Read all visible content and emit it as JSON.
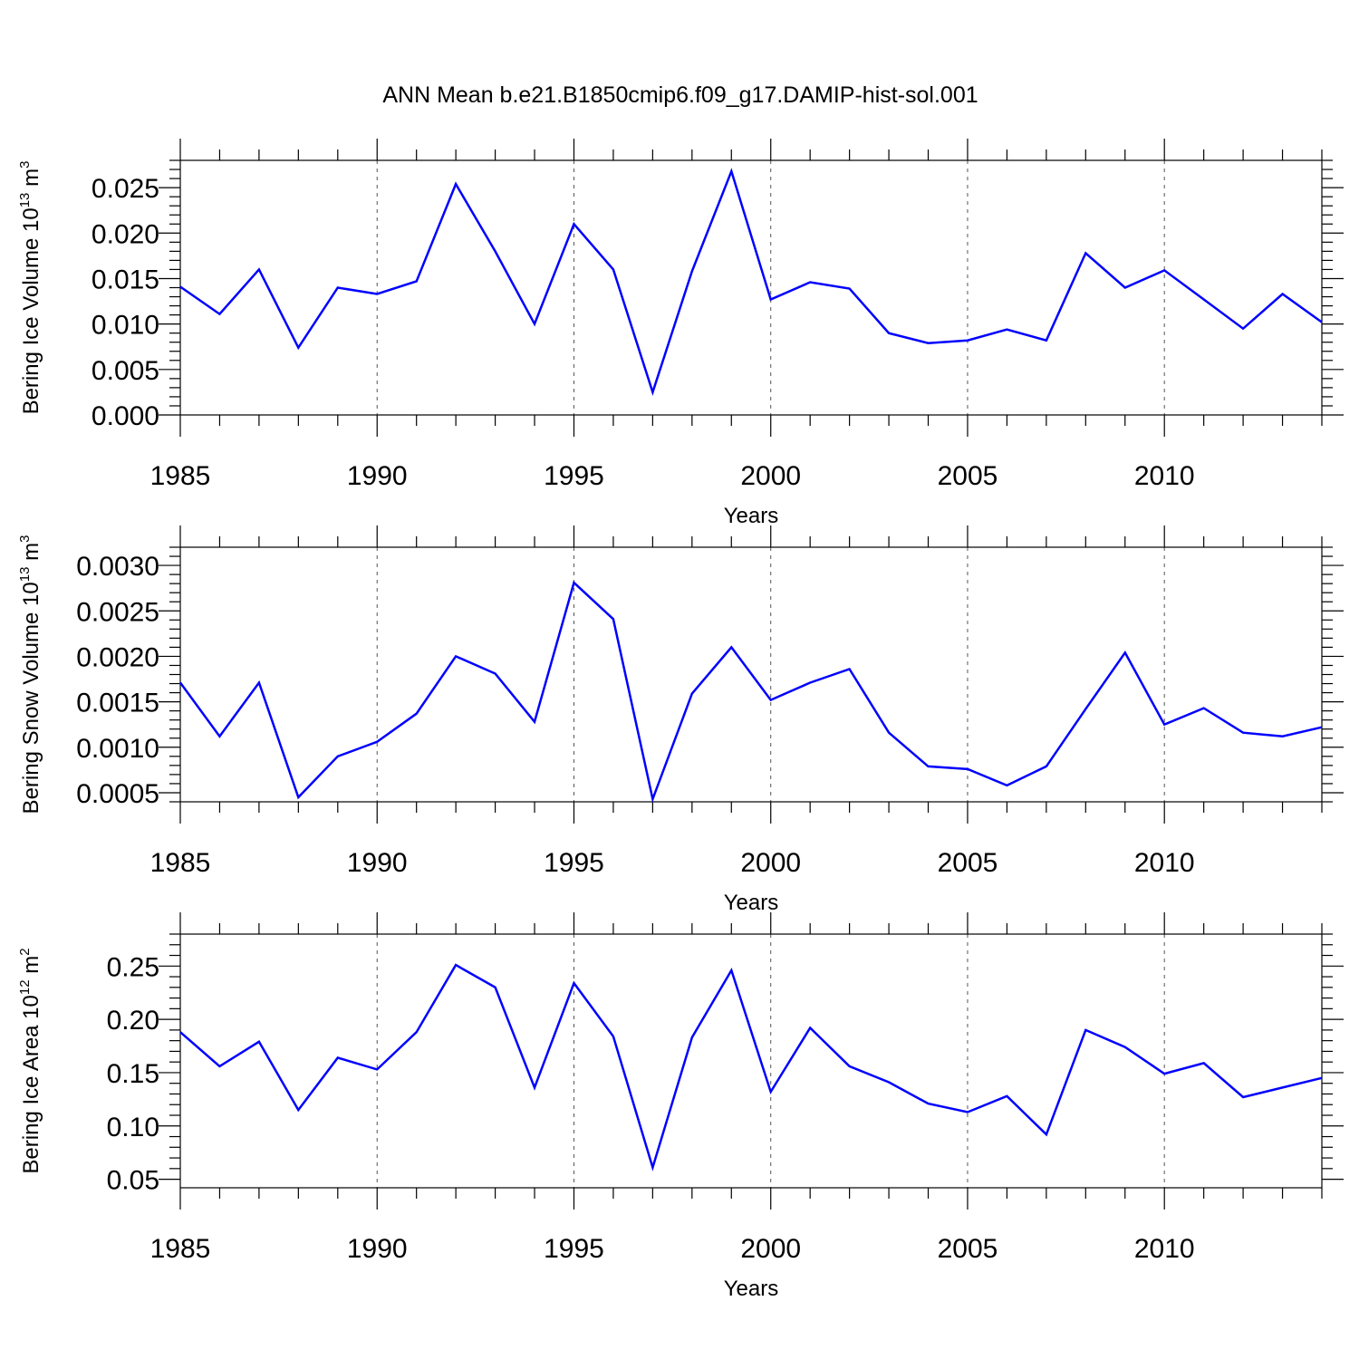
{
  "title": "ANN Mean b.e21.B1850cmip6.f09_g17.DAMIP-hist-sol.001",
  "colors": {
    "line": "#0000ff",
    "axis": "#000000",
    "grid": "#555555"
  },
  "chart_data": [
    {
      "type": "line",
      "xlabel": "Years",
      "ylabel": {
        "prefix": "Bering Ice Volume 10",
        "exp": "13",
        "unit": " m",
        "unit_exp": "3"
      },
      "xlim": [
        1985,
        2014
      ],
      "ylim": [
        0.0,
        0.028
      ],
      "xticks": [
        1985,
        1990,
        1995,
        2000,
        2005,
        2010
      ],
      "yticks": [
        "0.000",
        "0.005",
        "0.010",
        "0.015",
        "0.020",
        "0.025"
      ],
      "grid_x": "dashed vertical at major x ticks",
      "x": [
        1985,
        1986,
        1987,
        1988,
        1989,
        1990,
        1991,
        1992,
        1993,
        1994,
        1995,
        1996,
        1997,
        1998,
        1999,
        2000,
        2001,
        2002,
        2003,
        2004,
        2005,
        2006,
        2007,
        2008,
        2009,
        2010,
        2011,
        2012,
        2013,
        2014
      ],
      "series": [
        {
          "values": [
            0.0141,
            0.0111,
            0.016,
            0.0074,
            0.014,
            0.0133,
            0.0147,
            0.0254,
            0.018,
            0.01,
            0.021,
            0.016,
            0.0025,
            0.0158,
            0.0268,
            0.0127,
            0.0146,
            0.0139,
            0.009,
            0.0079,
            0.0082,
            0.0094,
            0.0082,
            0.0178,
            0.014,
            0.0159,
            0.0127,
            0.0095,
            0.0133,
            0.0102
          ]
        }
      ]
    },
    {
      "type": "line",
      "xlabel": "Years",
      "ylabel": {
        "prefix": "Bering Snow Volume 10",
        "exp": "13",
        "unit": " m",
        "unit_exp": "3"
      },
      "xlim": [
        1985,
        2014
      ],
      "ylim": [
        0.0004,
        0.0032
      ],
      "xticks": [
        1985,
        1990,
        1995,
        2000,
        2005,
        2010
      ],
      "yticks": [
        "0.0005",
        "0.0010",
        "0.0015",
        "0.0020",
        "0.0025",
        "0.0030"
      ],
      "grid_x": "dashed vertical at major x ticks",
      "x": [
        1985,
        1986,
        1987,
        1988,
        1989,
        1990,
        1991,
        1992,
        1993,
        1994,
        1995,
        1996,
        1997,
        1998,
        1999,
        2000,
        2001,
        2002,
        2003,
        2004,
        2005,
        2006,
        2007,
        2008,
        2009,
        2010,
        2011,
        2012,
        2013,
        2014
      ],
      "series": [
        {
          "values": [
            0.00171,
            0.00112,
            0.00171,
            0.00045,
            0.0009,
            0.00106,
            0.00137,
            0.002,
            0.00181,
            0.00128,
            0.00281,
            0.00241,
            0.00043,
            0.00159,
            0.0021,
            0.00152,
            0.00171,
            0.00186,
            0.00116,
            0.00079,
            0.00076,
            0.00058,
            0.00079,
            0.00142,
            0.00204,
            0.00125,
            0.00143,
            0.00116,
            0.00112,
            0.00122
          ]
        }
      ]
    },
    {
      "type": "line",
      "xlabel": "Years",
      "ylabel": {
        "prefix": "Bering Ice Area 10",
        "exp": "12",
        "unit": " m",
        "unit_exp": "2"
      },
      "xlim": [
        1985,
        2014
      ],
      "ylim": [
        0.042,
        0.28
      ],
      "xticks": [
        1985,
        1990,
        1995,
        2000,
        2005,
        2010
      ],
      "yticks": [
        "0.05",
        "0.10",
        "0.15",
        "0.20",
        "0.25"
      ],
      "grid_x": "dashed vertical at major x ticks",
      "x": [
        1985,
        1986,
        1987,
        1988,
        1989,
        1990,
        1991,
        1992,
        1993,
        1994,
        1995,
        1996,
        1997,
        1998,
        1999,
        2000,
        2001,
        2002,
        2003,
        2004,
        2005,
        2006,
        2007,
        2008,
        2009,
        2010,
        2011,
        2012,
        2013,
        2014
      ],
      "series": [
        {
          "values": [
            0.188,
            0.156,
            0.179,
            0.115,
            0.164,
            0.153,
            0.188,
            0.251,
            0.23,
            0.136,
            0.234,
            0.184,
            0.061,
            0.183,
            0.246,
            0.132,
            0.192,
            0.156,
            0.141,
            0.121,
            0.113,
            0.128,
            0.092,
            0.19,
            0.174,
            0.149,
            0.159,
            0.127,
            0.136,
            0.145
          ]
        }
      ]
    }
  ]
}
